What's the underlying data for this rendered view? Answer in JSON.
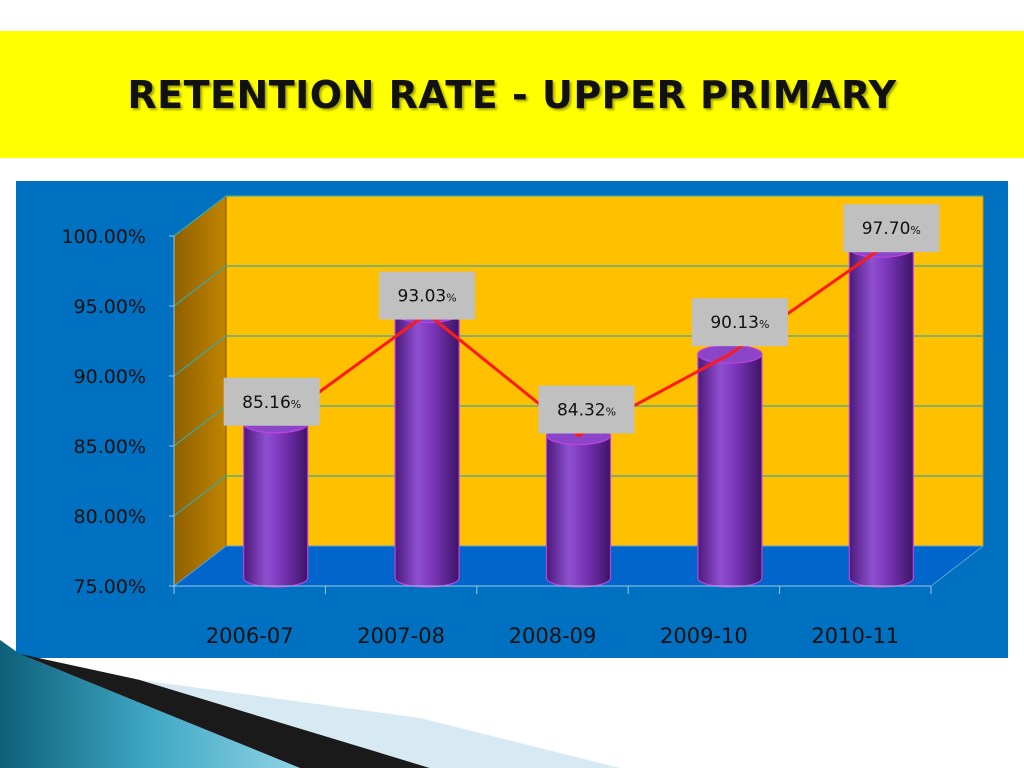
{
  "slide": {
    "title": "RETENTION RATE - UPPER PRIMARY"
  },
  "chart_data": {
    "type": "bar",
    "title": "",
    "xlabel": "",
    "ylabel": "",
    "categories": [
      "2006-07",
      "2007-08",
      "2008-09",
      "2009-10",
      "2010-11"
    ],
    "series": [
      {
        "values": [
          85.16,
          93.03,
          84.32,
          90.13,
          97.7
        ],
        "labels": [
          {
            "number": "85.16",
            "unit": "%"
          },
          {
            "number": "93.03",
            "unit": "%"
          },
          {
            "number": "84.32",
            "unit": "%"
          },
          {
            "number": "90.13",
            "unit": "%"
          },
          {
            "number": "97.70",
            "unit": "%"
          }
        ]
      }
    ],
    "overlay_line": {
      "values": [
        85.16,
        93.03,
        84.32,
        90.13,
        97.7
      ],
      "color": "#ff1a1a"
    },
    "ylim": [
      75,
      100
    ],
    "yticks": [
      75,
      80,
      85,
      90,
      95,
      100
    ],
    "ytick_labels": [
      "75.00%",
      "80.00%",
      "85.00%",
      "90.00%",
      "95.00%",
      "100.00%"
    ],
    "grid": true,
    "legend": "none",
    "colors": {
      "bar": "#7a34b8",
      "plot_background": "#ffc000",
      "chart_background": "#0070c0",
      "side_wall": "#b37700",
      "floor": "#0066cc",
      "gridline": "#3aa8a8",
      "data_label_box": "#c0c0c0"
    }
  }
}
